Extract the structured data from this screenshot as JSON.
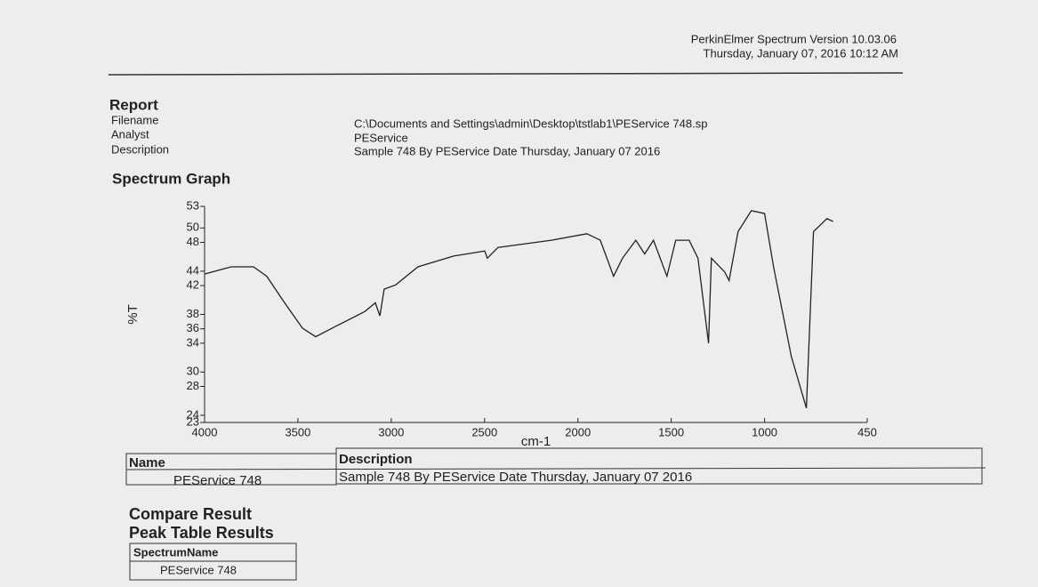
{
  "header": {
    "software": "PerkinElmer Spectrum Version 10.03.06",
    "datetime": "Thursday, January 07, 2016 10:12 AM"
  },
  "report": {
    "title": "Report",
    "fields": [
      {
        "label": "Filename",
        "value": "C:\\Documents and Settings\\admin\\Desktop\\tstlab1\\PEService 748.sp"
      },
      {
        "label": "Analyst",
        "value": "PEService"
      },
      {
        "label": "Description",
        "value": "Sample 748 By PEService Date Thursday, January 07 2016"
      }
    ]
  },
  "section_title": "Spectrum Graph",
  "chart_data": {
    "type": "line",
    "xlabel": "cm-1",
    "ylabel": "%T",
    "color": "#222222",
    "xlim": [
      4000,
      450
    ],
    "ylim": [
      23,
      53
    ],
    "xticks": [
      4000,
      3500,
      3000,
      2500,
      2000,
      1500,
      1000,
      450
    ],
    "yticks": [
      53,
      50,
      48,
      44,
      42,
      38,
      36,
      34,
      30,
      28,
      24,
      23
    ],
    "x": [
      4000,
      3857,
      3738,
      3667,
      3571,
      3476,
      3405,
      3285,
      3142,
      3085,
      3061,
      3038,
      2976,
      2857,
      2666,
      2499,
      2485,
      2428,
      2142,
      1952,
      1880,
      1809,
      1761,
      1690,
      1642,
      1595,
      1523,
      1476,
      1404,
      1357,
      1300,
      1285,
      1214,
      1190,
      1142,
      1071,
      1000,
      952,
      857,
      776,
      738,
      666,
      633
    ],
    "values": [
      43.6,
      44.6,
      44.6,
      43.3,
      39.6,
      36.1,
      34.9,
      36.5,
      38.4,
      39.6,
      37.8,
      41.5,
      42.1,
      44.6,
      46.1,
      46.8,
      45.8,
      47.3,
      48.3,
      49.2,
      48.3,
      43.3,
      45.8,
      48.3,
      46.4,
      48.3,
      43.3,
      48.3,
      48.3,
      45.8,
      34.0,
      45.8,
      43.9,
      42.7,
      49.5,
      52.4,
      52.0,
      44.6,
      32.2,
      25.0,
      49.5,
      51.3,
      50.9
    ]
  },
  "spectrum_table": {
    "headers": [
      "Name",
      "Description"
    ],
    "rows": [
      [
        "PEService 748",
        "Sample 748 By PEService Date Thursday, January 07 2016"
      ]
    ]
  },
  "compare": {
    "title": "Compare Result",
    "subtitle": "Peak Table Results",
    "table": {
      "headers": [
        "SpectrumName"
      ],
      "rows": [
        [
          "PEService 748"
        ]
      ]
    }
  }
}
